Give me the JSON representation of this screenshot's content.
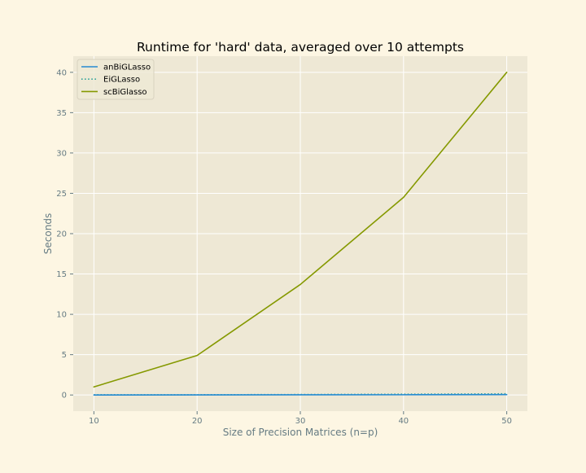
{
  "chart_data": {
    "type": "line",
    "title": "Runtime for 'hard' data, averaged over 10 attempts",
    "xlabel": "Size of Precision Matrices (n=p)",
    "ylabel": "Seconds",
    "x": [
      10,
      20,
      30,
      40,
      50
    ],
    "xticks": [
      "10",
      "20",
      "30",
      "40",
      "50"
    ],
    "yticks": [
      "0",
      "5",
      "10",
      "15",
      "20",
      "25",
      "30",
      "35",
      "40"
    ],
    "xlim": [
      8,
      52
    ],
    "ylim": [
      -2,
      42
    ],
    "grid": true,
    "legend_position": "upper-left",
    "colors": {
      "figure_bg": "#fdf6e3",
      "axes_bg": "#eee8d5",
      "grid": "#ffffff",
      "text": "#657b83"
    },
    "series": [
      {
        "name": "anBiGLasso",
        "values": [
          0.0,
          0.01,
          0.02,
          0.03,
          0.05
        ],
        "color": "#268bd2",
        "linestyle": "solid"
      },
      {
        "name": "EiGLasso",
        "values": [
          0.02,
          0.03,
          0.06,
          0.1,
          0.15
        ],
        "color": "#2aa198",
        "linestyle": "dotted"
      },
      {
        "name": "scBiGlasso",
        "values": [
          1.0,
          4.9,
          13.7,
          24.5,
          40.0
        ],
        "color": "#859900",
        "linestyle": "solid"
      }
    ]
  }
}
